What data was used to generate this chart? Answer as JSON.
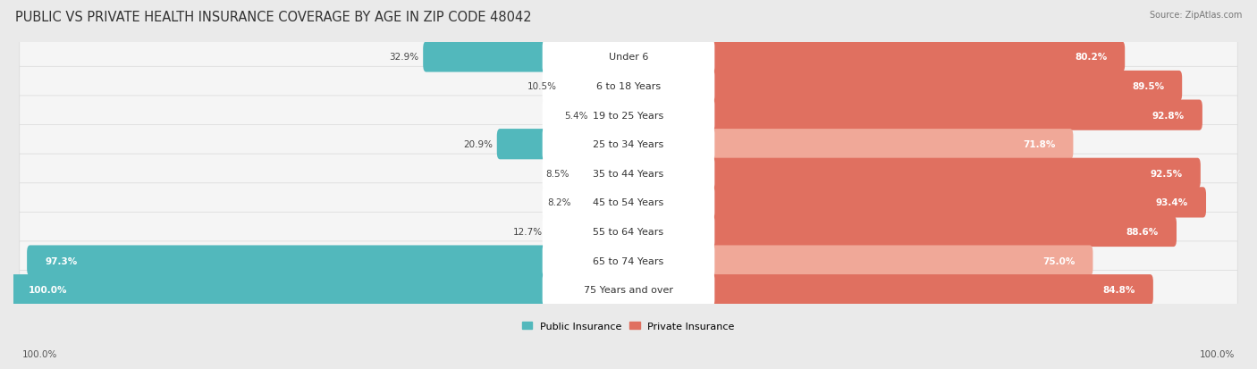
{
  "title": "PUBLIC VS PRIVATE HEALTH INSURANCE COVERAGE BY AGE IN ZIP CODE 48042",
  "source": "Source: ZipAtlas.com",
  "categories": [
    "Under 6",
    "6 to 18 Years",
    "19 to 25 Years",
    "25 to 34 Years",
    "35 to 44 Years",
    "45 to 54 Years",
    "55 to 64 Years",
    "65 to 74 Years",
    "75 Years and over"
  ],
  "public_values": [
    32.9,
    10.5,
    5.4,
    20.9,
    8.5,
    8.2,
    12.7,
    97.3,
    100.0
  ],
  "private_values": [
    80.2,
    89.5,
    92.8,
    71.8,
    92.5,
    93.4,
    88.6,
    75.0,
    84.8
  ],
  "public_color": "#52b8bc",
  "private_color_strong": "#e07060",
  "private_color_light": "#f0a898",
  "bg_color": "#eaeaea",
  "row_bg_color": "#f5f5f5",
  "row_edge_color": "#dddddd",
  "center_label_bg": "#ffffff",
  "bar_height": 0.55,
  "title_fontsize": 10.5,
  "label_fontsize": 8.0,
  "value_fontsize": 7.5,
  "legend_fontsize": 8.0,
  "axis_label_fontsize": 7.5,
  "max_value": 100.0,
  "x_left_label": "100.0%",
  "x_right_label": "100.0%",
  "private_strong_indices": [
    0,
    1,
    2,
    4,
    5,
    6,
    8
  ],
  "private_light_indices": [
    3,
    7
  ]
}
